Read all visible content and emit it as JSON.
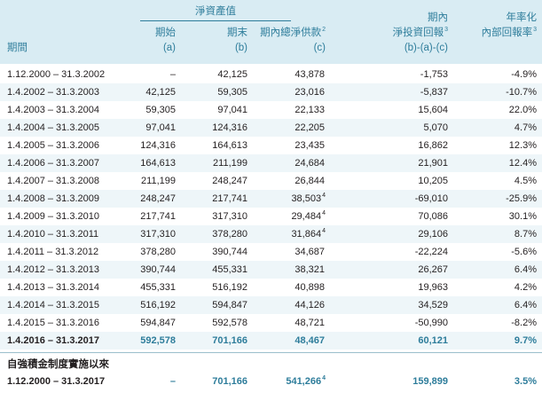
{
  "header": {
    "net_asset_value": "淨資產值",
    "period": "期間",
    "beginning": "期始",
    "beginning_sub": "(a)",
    "end": "期末",
    "end_sub": "(b)",
    "contributions": "期內總淨供款",
    "contributions_sup": "2",
    "contributions_sub": "(c)",
    "investment_return_1": "期內",
    "investment_return_2": "淨投資回報",
    "investment_return_sup": "3",
    "investment_return_sub": "(b)-(a)-(c)",
    "irr_1": "年率化",
    "irr_2": "內部回報率",
    "irr_sup": "3"
  },
  "rows": [
    {
      "period": "1.12.2000 – 31.3.2002",
      "a": "–",
      "b": "42,125",
      "c": "43,878",
      "c_sup": "",
      "r": "-1,753",
      "i": "-4.9%"
    },
    {
      "period": "1.4.2002 – 31.3.2003",
      "a": "42,125",
      "b": "59,305",
      "c": "23,016",
      "c_sup": "",
      "r": "-5,837",
      "i": "-10.7%"
    },
    {
      "period": "1.4.2003 – 31.3.2004",
      "a": "59,305",
      "b": "97,041",
      "c": "22,133",
      "c_sup": "",
      "r": "15,604",
      "i": "22.0%"
    },
    {
      "period": "1.4.2004 – 31.3.2005",
      "a": "97,041",
      "b": "124,316",
      "c": "22,205",
      "c_sup": "",
      "r": "5,070",
      "i": "4.7%"
    },
    {
      "period": "1.4.2005 – 31.3.2006",
      "a": "124,316",
      "b": "164,613",
      "c": "23,435",
      "c_sup": "",
      "r": "16,862",
      "i": "12.3%"
    },
    {
      "period": "1.4.2006 – 31.3.2007",
      "a": "164,613",
      "b": "211,199",
      "c": "24,684",
      "c_sup": "",
      "r": "21,901",
      "i": "12.4%"
    },
    {
      "period": "1.4.2007 – 31.3.2008",
      "a": "211,199",
      "b": "248,247",
      "c": "26,844",
      "c_sup": "",
      "r": "10,205",
      "i": "4.5%"
    },
    {
      "period": "1.4.2008 – 31.3.2009",
      "a": "248,247",
      "b": "217,741",
      "c": "38,503",
      "c_sup": "4",
      "r": "-69,010",
      "i": "-25.9%"
    },
    {
      "period": "1.4.2009 – 31.3.2010",
      "a": "217,741",
      "b": "317,310",
      "c": "29,484",
      "c_sup": "4",
      "r": "70,086",
      "i": "30.1%"
    },
    {
      "period": "1.4.2010 – 31.3.2011",
      "a": "317,310",
      "b": "378,280",
      "c": "31,864",
      "c_sup": "4",
      "r": "29,106",
      "i": "8.7%"
    },
    {
      "period": "1.4.2011 – 31.3.2012",
      "a": "378,280",
      "b": "390,744",
      "c": "34,687",
      "c_sup": "",
      "r": "-22,224",
      "i": "-5.6%"
    },
    {
      "period": "1.4.2012 – 31.3.2013",
      "a": "390,744",
      "b": "455,331",
      "c": "38,321",
      "c_sup": "",
      "r": "26,267",
      "i": "6.4%"
    },
    {
      "period": "1.4.2013 – 31.3.2014",
      "a": "455,331",
      "b": "516,192",
      "c": "40,898",
      "c_sup": "",
      "r": "19,963",
      "i": "4.2%"
    },
    {
      "period": "1.4.2014 – 31.3.2015",
      "a": "516,192",
      "b": "594,847",
      "c": "44,126",
      "c_sup": "",
      "r": "34,529",
      "i": "6.4%"
    },
    {
      "period": "1.4.2015 – 31.3.2016",
      "a": "594,847",
      "b": "592,578",
      "c": "48,721",
      "c_sup": "",
      "r": "-50,990",
      "i": "-8.2%"
    },
    {
      "period": "1.4.2016 – 31.3.2017",
      "a": "592,578",
      "b": "701,166",
      "c": "48,467",
      "c_sup": "",
      "r": "60,121",
      "i": "9.7%"
    }
  ],
  "since_inception": {
    "title": "自強積金制度實施以來",
    "period": "1.12.2000 – 31.3.2017",
    "a": "–",
    "b": "701,166",
    "c": "541,266",
    "c_sup": "4",
    "r": "159,899",
    "i": "3.5%"
  }
}
